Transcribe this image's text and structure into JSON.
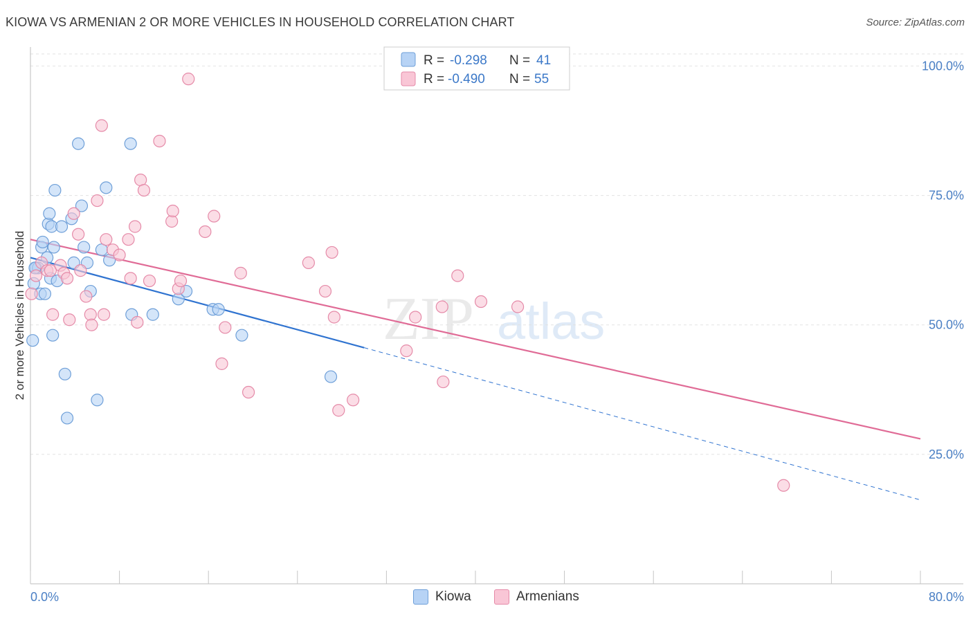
{
  "title": "KIOWA VS ARMENIAN 2 OR MORE VEHICLES IN HOUSEHOLD CORRELATION CHART",
  "source": "Source: ZipAtlas.com",
  "watermark": {
    "zip": "ZIP",
    "atlas": "atlas"
  },
  "legend_stats": [
    {
      "r_label": "R =",
      "r_value": "-0.298",
      "n_label": "N =",
      "n_value": "41",
      "fill": "#b7d3f5",
      "stroke": "#6e9fd8"
    },
    {
      "r_label": "R =",
      "r_value": "-0.490",
      "n_label": "N =",
      "n_value": "55",
      "fill": "#f9c6d6",
      "stroke": "#e58aa8"
    }
  ],
  "bottom_legend": [
    {
      "label": "Kiowa",
      "fill": "#b7d3f5",
      "stroke": "#6e9fd8"
    },
    {
      "label": "Armenians",
      "fill": "#f9c6d6",
      "stroke": "#e58aa8"
    }
  ],
  "chart_data": {
    "type": "scatter",
    "title": "KIOWA VS ARMENIAN 2 OR MORE VEHICLES IN HOUSEHOLD CORRELATION CHART",
    "xlabel": "",
    "ylabel": "2 or more Vehicles in Household",
    "xlim": [
      0,
      80
    ],
    "ylim": [
      0,
      105
    ],
    "x_tick_labels": [
      "0.0%",
      "80.0%"
    ],
    "y_ticks": [
      25,
      50,
      75,
      100
    ],
    "y_tick_labels": [
      "25.0%",
      "50.0%",
      "75.0%",
      "100.0%"
    ],
    "grid": true,
    "legend_position": "top-center",
    "series": [
      {
        "name": "Kiowa",
        "color": "#6e9fd8",
        "fill": "#b7d3f5",
        "line_color": "#2f73d0",
        "trend": {
          "x0": 0,
          "y0": 63.0,
          "x1": 30,
          "y1": 45.6,
          "dash_x1": 80,
          "dash_y1": 16.2
        },
        "points": [
          [
            0.2,
            47.0
          ],
          [
            0.3,
            58.0
          ],
          [
            0.5,
            61.0
          ],
          [
            0.7,
            61.0
          ],
          [
            0.9,
            56.0
          ],
          [
            1.0,
            65.0
          ],
          [
            1.1,
            66.0
          ],
          [
            1.3,
            56.0
          ],
          [
            1.5,
            63.0
          ],
          [
            1.6,
            69.5
          ],
          [
            1.7,
            71.5
          ],
          [
            1.8,
            59.0
          ],
          [
            1.9,
            69.0
          ],
          [
            2.0,
            48.0
          ],
          [
            2.1,
            65.0
          ],
          [
            2.2,
            76.0
          ],
          [
            2.4,
            58.5
          ],
          [
            2.8,
            69.0
          ],
          [
            3.1,
            40.5
          ],
          [
            3.3,
            32.0
          ],
          [
            3.7,
            70.5
          ],
          [
            3.9,
            62.0
          ],
          [
            4.3,
            85.0
          ],
          [
            4.6,
            73.0
          ],
          [
            4.8,
            65.0
          ],
          [
            5.1,
            62.0
          ],
          [
            5.4,
            56.5
          ],
          [
            6.0,
            35.5
          ],
          [
            6.4,
            64.5
          ],
          [
            6.8,
            76.5
          ],
          [
            7.1,
            62.5
          ],
          [
            9.0,
            85.0
          ],
          [
            9.1,
            52.0
          ],
          [
            11.0,
            52.0
          ],
          [
            13.3,
            55.0
          ],
          [
            14.0,
            56.5
          ],
          [
            16.4,
            53.0
          ],
          [
            16.9,
            53.0
          ],
          [
            19.0,
            48.0
          ],
          [
            27.0,
            40.0
          ],
          [
            0.4,
            61.0
          ]
        ]
      },
      {
        "name": "Armenians",
        "color": "#e58aa8",
        "fill": "#f9c6d6",
        "line_color": "#e06b96",
        "trend": {
          "x0": 0,
          "y0": 66.5,
          "x1": 80,
          "y1": 28.0
        },
        "points": [
          [
            0.1,
            56.0
          ],
          [
            0.5,
            59.5
          ],
          [
            1.0,
            62.0
          ],
          [
            1.5,
            60.5
          ],
          [
            1.8,
            60.5
          ],
          [
            2.0,
            52.0
          ],
          [
            2.7,
            61.5
          ],
          [
            3.0,
            60.0
          ],
          [
            3.3,
            59.0
          ],
          [
            3.5,
            51.0
          ],
          [
            3.9,
            71.5
          ],
          [
            4.3,
            67.5
          ],
          [
            4.5,
            60.5
          ],
          [
            5.0,
            55.5
          ],
          [
            5.4,
            52.0
          ],
          [
            5.5,
            50.0
          ],
          [
            6.0,
            74.0
          ],
          [
            6.4,
            88.5
          ],
          [
            6.6,
            52.0
          ],
          [
            6.8,
            66.5
          ],
          [
            7.4,
            64.5
          ],
          [
            8.0,
            63.5
          ],
          [
            8.8,
            66.5
          ],
          [
            9.0,
            59.0
          ],
          [
            9.4,
            69.0
          ],
          [
            9.6,
            50.5
          ],
          [
            9.9,
            78.0
          ],
          [
            10.2,
            76.0
          ],
          [
            10.7,
            58.5
          ],
          [
            11.6,
            85.5
          ],
          [
            12.7,
            70.0
          ],
          [
            12.8,
            72.0
          ],
          [
            13.3,
            57.0
          ],
          [
            13.5,
            58.5
          ],
          [
            14.2,
            97.5
          ],
          [
            15.7,
            68.0
          ],
          [
            16.5,
            71.0
          ],
          [
            17.2,
            42.5
          ],
          [
            17.5,
            49.5
          ],
          [
            18.9,
            60.0
          ],
          [
            19.6,
            37.0
          ],
          [
            25.0,
            62.0
          ],
          [
            26.5,
            56.5
          ],
          [
            27.1,
            64.0
          ],
          [
            27.3,
            51.5
          ],
          [
            27.7,
            33.5
          ],
          [
            29.0,
            35.5
          ],
          [
            33.8,
            45.0
          ],
          [
            34.6,
            51.5
          ],
          [
            37.0,
            53.5
          ],
          [
            37.1,
            39.0
          ],
          [
            38.4,
            59.5
          ],
          [
            40.5,
            54.5
          ],
          [
            43.8,
            53.5
          ],
          [
            67.7,
            19.0
          ]
        ]
      }
    ]
  }
}
